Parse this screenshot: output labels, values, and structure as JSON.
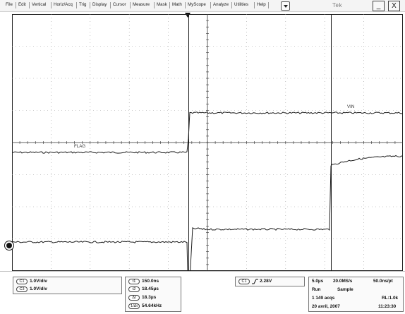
{
  "menu": {
    "items": [
      "File",
      "Edit",
      "Vertical",
      "Horiz/Acq",
      "Trig",
      "Display",
      "Cursor",
      "Measure",
      "Mask",
      "Math",
      "MyScope",
      "Analyze",
      "Utilities",
      "Help"
    ],
    "logo": "Tek",
    "minimize_label": "_",
    "close_label": "X"
  },
  "traces": {
    "vin_label": "VIN",
    "flag_label": "FLAG"
  },
  "channels": {
    "c1_tag": "C1",
    "c1_scale": "1.0V/div",
    "c3_tag": "C3",
    "c3_scale": "1.0V/div"
  },
  "cursor": {
    "t1_tag": "t1",
    "t1_value": "150.0ns",
    "t2_tag": "t2",
    "t2_value": "18.45µs",
    "dt_tag": "Δt",
    "dt_value": "18.3µs",
    "inv_dt_tag": "1/Δt",
    "inv_dt_value": "54.64kHz"
  },
  "trigger": {
    "source_tag": "C1",
    "level": "2.28V"
  },
  "acquisition": {
    "timebase": "5.0µs",
    "sample_rate": "20.0MS/s",
    "resolution": "50.0ns/pt",
    "state": "Run",
    "mode": "Sample",
    "acqs": "1 149 acqs",
    "record_length": "RL:1.0k",
    "date": "20 avril, 2007",
    "time": "11:23:30"
  },
  "colors": {
    "trace": "#1c1c1c",
    "grid": "#9a9a9a",
    "background": "#ffffff"
  }
}
